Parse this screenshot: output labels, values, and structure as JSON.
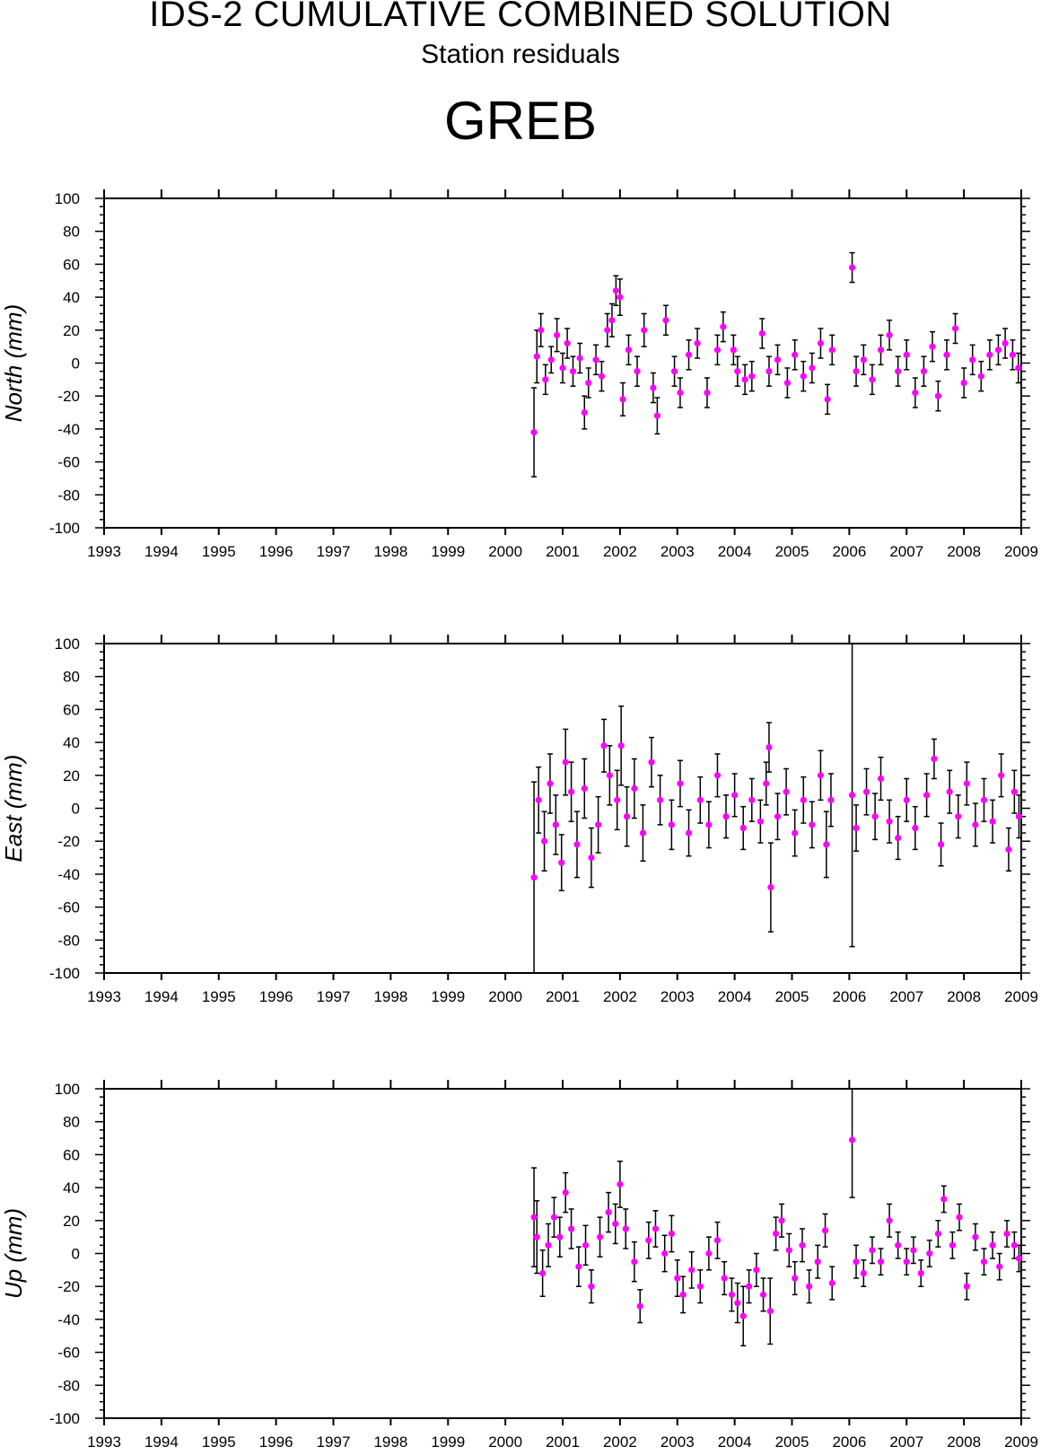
{
  "header": {
    "title": "IDS-2 CUMULATIVE COMBINED SOLUTION",
    "subtitle": "Station residuals",
    "station": "GREB"
  },
  "colors": {
    "point": "#ff00ff",
    "errorbar": "#000000",
    "axis": "#000000"
  },
  "chart_data": [
    {
      "type": "scatter",
      "name": "north",
      "ylabel": "North (mm)",
      "xlim": [
        1993,
        2009
      ],
      "ylim": [
        -100,
        100
      ],
      "xticks": [
        "1993",
        "1994",
        "1995",
        "1996",
        "1997",
        "1998",
        "1999",
        "2000",
        "2001",
        "2002",
        "2003",
        "2004",
        "2005",
        "2006",
        "2007",
        "2008",
        "2009"
      ],
      "yticks": [
        "100",
        "80",
        "60",
        "40",
        "20",
        "0",
        "-20",
        "-40",
        "-60",
        "-80",
        "-100"
      ],
      "series": [
        {
          "points": [
            [
              2000.5,
              -42,
              27
            ],
            [
              2000.55,
              4,
              16
            ],
            [
              2000.62,
              20,
              10
            ],
            [
              2000.7,
              -10,
              9
            ],
            [
              2000.8,
              2,
              8
            ],
            [
              2000.9,
              17,
              10
            ],
            [
              2001.0,
              -3,
              9
            ],
            [
              2001.08,
              12,
              9
            ],
            [
              2001.18,
              -5,
              9
            ],
            [
              2001.3,
              3,
              9
            ],
            [
              2001.38,
              -30,
              10
            ],
            [
              2001.45,
              -12,
              9
            ],
            [
              2001.58,
              2,
              9
            ],
            [
              2001.68,
              -8,
              9
            ],
            [
              2001.78,
              20,
              10
            ],
            [
              2001.86,
              26,
              10
            ],
            [
              2001.93,
              44,
              9
            ],
            [
              2002.0,
              40,
              11
            ],
            [
              2002.05,
              -22,
              10
            ],
            [
              2002.15,
              8,
              9
            ],
            [
              2002.3,
              -5,
              9
            ],
            [
              2002.42,
              20,
              10
            ],
            [
              2002.58,
              -15,
              9
            ],
            [
              2002.65,
              -32,
              11
            ],
            [
              2002.8,
              26,
              9
            ],
            [
              2002.95,
              -5,
              9
            ],
            [
              2003.05,
              -18,
              9
            ],
            [
              2003.2,
              5,
              9
            ],
            [
              2003.35,
              12,
              9
            ],
            [
              2003.52,
              -18,
              9
            ],
            [
              2003.7,
              8,
              9
            ],
            [
              2003.8,
              22,
              9
            ],
            [
              2003.98,
              8,
              9
            ],
            [
              2004.05,
              -5,
              9
            ],
            [
              2004.18,
              -10,
              9
            ],
            [
              2004.3,
              -8,
              9
            ],
            [
              2004.48,
              18,
              9
            ],
            [
              2004.6,
              -5,
              9
            ],
            [
              2004.75,
              2,
              9
            ],
            [
              2004.92,
              -12,
              9
            ],
            [
              2005.05,
              5,
              9
            ],
            [
              2005.2,
              -8,
              9
            ],
            [
              2005.35,
              -3,
              9
            ],
            [
              2005.5,
              12,
              9
            ],
            [
              2005.62,
              -22,
              9
            ],
            [
              2005.7,
              8,
              9
            ],
            [
              2006.05,
              58,
              9
            ],
            [
              2006.12,
              -5,
              9
            ],
            [
              2006.25,
              2,
              9
            ],
            [
              2006.4,
              -10,
              9
            ],
            [
              2006.55,
              8,
              9
            ],
            [
              2006.7,
              17,
              9
            ],
            [
              2006.85,
              -5,
              9
            ],
            [
              2007.0,
              5,
              9
            ],
            [
              2007.15,
              -18,
              9
            ],
            [
              2007.3,
              -5,
              9
            ],
            [
              2007.45,
              10,
              9
            ],
            [
              2007.55,
              -20,
              9
            ],
            [
              2007.7,
              5,
              9
            ],
            [
              2007.85,
              21,
              9
            ],
            [
              2008.0,
              -12,
              9
            ],
            [
              2008.15,
              2,
              9
            ],
            [
              2008.3,
              -8,
              9
            ],
            [
              2008.45,
              5,
              9
            ],
            [
              2008.6,
              8,
              9
            ],
            [
              2008.72,
              12,
              9
            ],
            [
              2008.85,
              5,
              9
            ],
            [
              2008.95,
              -3,
              9
            ]
          ]
        }
      ]
    },
    {
      "type": "scatter",
      "name": "east",
      "ylabel": "East (mm)",
      "xlim": [
        1993,
        2009
      ],
      "ylim": [
        -100,
        100
      ],
      "xticks": [
        "1993",
        "1994",
        "1995",
        "1996",
        "1997",
        "1998",
        "1999",
        "2000",
        "2001",
        "2002",
        "2003",
        "2004",
        "2005",
        "2006",
        "2007",
        "2008",
        "2009"
      ],
      "yticks": [
        "100",
        "80",
        "60",
        "40",
        "20",
        "0",
        "-20",
        "-40",
        "-60",
        "-80",
        "-100"
      ],
      "series": [
        {
          "points": [
            [
              2000.5,
              -42,
              58
            ],
            [
              2000.58,
              5,
              20
            ],
            [
              2000.68,
              -20,
              18
            ],
            [
              2000.78,
              15,
              18
            ],
            [
              2000.88,
              -10,
              18
            ],
            [
              2000.98,
              -33,
              17
            ],
            [
              2001.05,
              28,
              20
            ],
            [
              2001.15,
              10,
              18
            ],
            [
              2001.25,
              -22,
              20
            ],
            [
              2001.38,
              12,
              18
            ],
            [
              2001.5,
              -30,
              18
            ],
            [
              2001.62,
              -10,
              17
            ],
            [
              2001.72,
              38,
              16
            ],
            [
              2001.82,
              20,
              18
            ],
            [
              2001.95,
              5,
              18
            ],
            [
              2002.02,
              38,
              24
            ],
            [
              2002.12,
              -5,
              18
            ],
            [
              2002.25,
              12,
              18
            ],
            [
              2002.4,
              -15,
              17
            ],
            [
              2002.55,
              28,
              15
            ],
            [
              2002.7,
              5,
              15
            ],
            [
              2002.9,
              -10,
              15
            ],
            [
              2003.05,
              15,
              14
            ],
            [
              2003.2,
              -15,
              14
            ],
            [
              2003.4,
              5,
              14
            ],
            [
              2003.55,
              -10,
              14
            ],
            [
              2003.7,
              20,
              13
            ],
            [
              2003.85,
              -5,
              13
            ],
            [
              2004.0,
              8,
              13
            ],
            [
              2004.15,
              -12,
              13
            ],
            [
              2004.3,
              5,
              13
            ],
            [
              2004.45,
              -8,
              13
            ],
            [
              2004.55,
              15,
              13
            ],
            [
              2004.6,
              37,
              15
            ],
            [
              2004.63,
              -48,
              27
            ],
            [
              2004.75,
              -5,
              14
            ],
            [
              2004.9,
              10,
              14
            ],
            [
              2005.05,
              -15,
              14
            ],
            [
              2005.2,
              5,
              14
            ],
            [
              2005.35,
              -10,
              14
            ],
            [
              2005.5,
              20,
              15
            ],
            [
              2005.6,
              -22,
              20
            ],
            [
              2005.68,
              5,
              16
            ],
            [
              2006.05,
              8,
              92
            ],
            [
              2006.12,
              -12,
              14
            ],
            [
              2006.3,
              10,
              14
            ],
            [
              2006.45,
              -5,
              14
            ],
            [
              2006.55,
              18,
              13
            ],
            [
              2006.7,
              -8,
              13
            ],
            [
              2006.85,
              -18,
              13
            ],
            [
              2007.0,
              5,
              13
            ],
            [
              2007.15,
              -12,
              13
            ],
            [
              2007.35,
              8,
              13
            ],
            [
              2007.48,
              30,
              12
            ],
            [
              2007.6,
              -22,
              13
            ],
            [
              2007.75,
              10,
              13
            ],
            [
              2007.9,
              -5,
              13
            ],
            [
              2008.05,
              15,
              13
            ],
            [
              2008.2,
              -10,
              13
            ],
            [
              2008.35,
              5,
              13
            ],
            [
              2008.5,
              -8,
              13
            ],
            [
              2008.65,
              20,
              13
            ],
            [
              2008.78,
              -25,
              13
            ],
            [
              2008.88,
              10,
              13
            ],
            [
              2008.96,
              -5,
              13
            ]
          ]
        }
      ]
    },
    {
      "type": "scatter",
      "name": "up",
      "ylabel": "Up (mm)",
      "xlim": [
        1993,
        2009
      ],
      "ylim": [
        -100,
        100
      ],
      "xticks": [
        "1993",
        "1994",
        "1995",
        "1996",
        "1997",
        "1998",
        "1999",
        "2000",
        "2001",
        "2002",
        "2003",
        "2004",
        "2005",
        "2006",
        "2007",
        "2008",
        "2009"
      ],
      "yticks": [
        "100",
        "80",
        "60",
        "40",
        "20",
        "0",
        "-20",
        "-40",
        "-60",
        "-80",
        "-100"
      ],
      "series": [
        {
          "points": [
            [
              2000.5,
              22,
              30
            ],
            [
              2000.55,
              10,
              22
            ],
            [
              2000.65,
              -12,
              14
            ],
            [
              2000.75,
              5,
              13
            ],
            [
              2000.85,
              22,
              12
            ],
            [
              2000.95,
              10,
              12
            ],
            [
              2001.05,
              37,
              12
            ],
            [
              2001.15,
              15,
              12
            ],
            [
              2001.28,
              -8,
              12
            ],
            [
              2001.4,
              5,
              12
            ],
            [
              2001.5,
              -20,
              10
            ],
            [
              2001.65,
              10,
              12
            ],
            [
              2001.8,
              25,
              12
            ],
            [
              2001.92,
              18,
              12
            ],
            [
              2002.0,
              42,
              14
            ],
            [
              2002.1,
              15,
              12
            ],
            [
              2002.25,
              -5,
              12
            ],
            [
              2002.35,
              -32,
              10
            ],
            [
              2002.5,
              8,
              11
            ],
            [
              2002.62,
              15,
              11
            ],
            [
              2002.78,
              0,
              11
            ],
            [
              2002.9,
              12,
              11
            ],
            [
              2003.0,
              -15,
              11
            ],
            [
              2003.1,
              -25,
              11
            ],
            [
              2003.25,
              -10,
              11
            ],
            [
              2003.4,
              -20,
              10
            ],
            [
              2003.55,
              0,
              10
            ],
            [
              2003.7,
              8,
              11
            ],
            [
              2003.82,
              -15,
              10
            ],
            [
              2003.95,
              -25,
              10
            ],
            [
              2004.05,
              -30,
              12
            ],
            [
              2004.15,
              -38,
              18
            ],
            [
              2004.25,
              -20,
              10
            ],
            [
              2004.38,
              -10,
              10
            ],
            [
              2004.5,
              -25,
              10
            ],
            [
              2004.62,
              -35,
              20
            ],
            [
              2004.72,
              12,
              10
            ],
            [
              2004.82,
              20,
              10
            ],
            [
              2004.95,
              2,
              10
            ],
            [
              2005.05,
              -15,
              10
            ],
            [
              2005.18,
              5,
              10
            ],
            [
              2005.3,
              -20,
              10
            ],
            [
              2005.45,
              -5,
              10
            ],
            [
              2005.58,
              14,
              10
            ],
            [
              2005.7,
              -18,
              10
            ],
            [
              2006.05,
              69,
              35
            ],
            [
              2006.12,
              -5,
              10
            ],
            [
              2006.25,
              -12,
              8
            ],
            [
              2006.4,
              2,
              8
            ],
            [
              2006.55,
              -5,
              8
            ],
            [
              2006.7,
              20,
              10
            ],
            [
              2006.85,
              5,
              8
            ],
            [
              2007.0,
              -5,
              8
            ],
            [
              2007.12,
              2,
              8
            ],
            [
              2007.25,
              -12,
              8
            ],
            [
              2007.4,
              0,
              8
            ],
            [
              2007.55,
              12,
              8
            ],
            [
              2007.65,
              33,
              8
            ],
            [
              2007.8,
              5,
              8
            ],
            [
              2007.92,
              22,
              8
            ],
            [
              2008.05,
              -20,
              8
            ],
            [
              2008.2,
              10,
              8
            ],
            [
              2008.35,
              -5,
              8
            ],
            [
              2008.5,
              5,
              8
            ],
            [
              2008.62,
              -8,
              8
            ],
            [
              2008.75,
              12,
              8
            ],
            [
              2008.88,
              5,
              8
            ],
            [
              2008.96,
              -3,
              8
            ]
          ]
        }
      ]
    }
  ]
}
